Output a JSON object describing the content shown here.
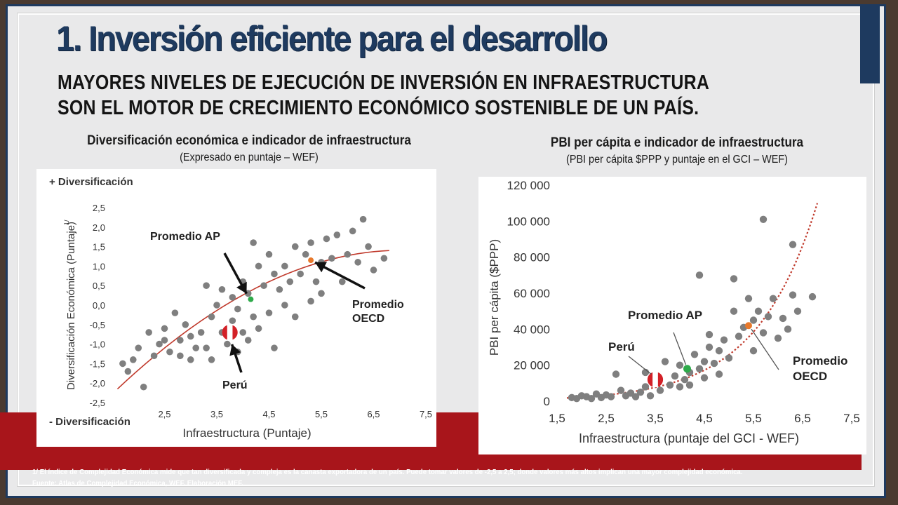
{
  "slide": {
    "title": "1. Inversión eficiente para el desarrollo",
    "subtitle": "MAYORES NIVELES DE EJECUCIÓN DE INVERSIÓN EN INFRAESTRUCTURA SON EL MOTOR DE CRECIMIENTO ECONÓMICO SOSTENIBLE DE UN PAÍS.",
    "footnote": "1/ El índice de Complejidad Económica mide que tan diversificada y compleja es la canasta exportadora de un país. Puede tomar valores de -2,5 a 2,5; donde valores más altos implican una mayor complejidad económica.",
    "source": "Fuente: Atlas de Complejidad Económica, WEF. Elaboración MEF.",
    "colors": {
      "navy": "#1e3a5f",
      "red_band": "#a8151b",
      "dots": "#7f7f7f",
      "trend": "#c0392b",
      "ap": "#2eaa4a",
      "oecd": "#e8792b"
    }
  },
  "chart_data": [
    {
      "type": "scatter",
      "title": "Diversificación económica e indicador de infraestructura",
      "subtitle": "(Expresado en puntaje – WEF)",
      "xlabel": "Infraestructura (Puntaje)",
      "ylabel": "Diversificación Económica (Puntaje)",
      "ylabel_sup": "1/",
      "top_label": "+ Diversificación",
      "bottom_label": "- Diversificación",
      "xlim": [
        1.5,
        7.5
      ],
      "ylim": [
        -2.5,
        2.5
      ],
      "x_ticks": [
        "2,5",
        "3,5",
        "4,5",
        "5,5",
        "6,5",
        "7,5"
      ],
      "x_tick_values": [
        2.5,
        3.5,
        4.5,
        5.5,
        6.5,
        7.5
      ],
      "y_ticks": [
        "2,5",
        "2,0",
        "1,5",
        "1,0",
        "0,5",
        "0,0",
        "-0,5",
        "-1,0",
        "-1,5",
        "-2,0",
        "-2,5"
      ],
      "y_tick_values": [
        2.5,
        2.0,
        1.5,
        1.0,
        0.5,
        0.0,
        -0.5,
        -1.0,
        -1.5,
        -2.0,
        -2.5
      ],
      "grid": false,
      "trend": {
        "type": "quadratic",
        "from": [
          1.6,
          -2.15
        ],
        "via": [
          4.3,
          0.5
        ],
        "to": [
          6.8,
          1.4
        ]
      },
      "points": [
        [
          1.7,
          -1.5
        ],
        [
          1.8,
          -1.7
        ],
        [
          1.9,
          -1.4
        ],
        [
          2.0,
          -1.1
        ],
        [
          2.1,
          -2.1
        ],
        [
          2.2,
          -0.7
        ],
        [
          2.3,
          -1.3
        ],
        [
          2.4,
          -1.0
        ],
        [
          2.5,
          -0.9
        ],
        [
          2.5,
          -0.6
        ],
        [
          2.6,
          -1.2
        ],
        [
          2.7,
          -0.2
        ],
        [
          2.8,
          -0.9
        ],
        [
          2.8,
          -1.3
        ],
        [
          2.9,
          -0.5
        ],
        [
          3.0,
          -1.4
        ],
        [
          3.0,
          -0.8
        ],
        [
          3.1,
          -1.1
        ],
        [
          3.2,
          -0.7
        ],
        [
          3.3,
          -1.1
        ],
        [
          3.3,
          0.5
        ],
        [
          3.4,
          -0.3
        ],
        [
          3.4,
          -1.4
        ],
        [
          3.5,
          0.0
        ],
        [
          3.6,
          -0.7
        ],
        [
          3.6,
          0.4
        ],
        [
          3.7,
          -1.0
        ],
        [
          3.8,
          -0.4
        ],
        [
          3.8,
          0.2
        ],
        [
          3.9,
          -0.1
        ],
        [
          3.9,
          -1.2
        ],
        [
          4.0,
          0.6
        ],
        [
          4.0,
          -0.7
        ],
        [
          4.1,
          0.3
        ],
        [
          4.1,
          -0.9
        ],
        [
          4.2,
          1.6
        ],
        [
          4.2,
          -0.3
        ],
        [
          4.3,
          1.0
        ],
        [
          4.3,
          -0.6
        ],
        [
          4.4,
          0.5
        ],
        [
          4.5,
          -0.2
        ],
        [
          4.5,
          1.3
        ],
        [
          4.6,
          0.8
        ],
        [
          4.6,
          -1.1
        ],
        [
          4.7,
          0.4
        ],
        [
          4.8,
          0.0
        ],
        [
          4.8,
          1.0
        ],
        [
          4.9,
          0.6
        ],
        [
          5.0,
          1.5
        ],
        [
          5.0,
          -0.3
        ],
        [
          5.1,
          0.8
        ],
        [
          5.2,
          1.3
        ],
        [
          5.3,
          0.1
        ],
        [
          5.3,
          1.6
        ],
        [
          5.4,
          0.6
        ],
        [
          5.5,
          1.1
        ],
        [
          5.5,
          0.3
        ],
        [
          5.6,
          1.7
        ],
        [
          5.7,
          1.2
        ],
        [
          5.8,
          1.8
        ],
        [
          5.9,
          0.6
        ],
        [
          6.0,
          1.3
        ],
        [
          6.1,
          1.9
        ],
        [
          6.2,
          1.1
        ],
        [
          6.3,
          2.2
        ],
        [
          6.4,
          1.5
        ],
        [
          6.5,
          0.9
        ],
        [
          6.7,
          1.2
        ]
      ],
      "highlights": [
        {
          "name": "Promedio AP",
          "x": 4.15,
          "y": 0.15
        },
        {
          "name": "Promedio OECD",
          "x": 5.3,
          "y": 1.15
        },
        {
          "name": "Perú",
          "x": 3.75,
          "y": -0.7
        }
      ],
      "annotations": {
        "ap": "Promedio AP",
        "oecd_1": "Promedio",
        "oecd_2": "OECD",
        "peru": "Perú"
      }
    },
    {
      "type": "scatter",
      "title": "PBI per cápita e indicador de infraestructura",
      "subtitle": "(PBI per cápita $PPP y puntaje en el GCI – WEF)",
      "xlabel": "Infraestructura (puntaje del GCI - WEF)",
      "ylabel": "PBI per cápita ($PPP)",
      "xlim": [
        1.5,
        7.5
      ],
      "ylim": [
        0,
        120000
      ],
      "x_ticks": [
        "1,5",
        "2,5",
        "3,5",
        "4,5",
        "5,5",
        "6,5",
        "7,5"
      ],
      "x_tick_values": [
        1.5,
        2.5,
        3.5,
        4.5,
        5.5,
        6.5,
        7.5
      ],
      "y_ticks": [
        "120 000",
        "100 000",
        "80 000",
        "60 000",
        "40 000",
        "20 000",
        "0"
      ],
      "y_tick_values": [
        120000,
        100000,
        80000,
        60000,
        40000,
        20000,
        0
      ],
      "grid": false,
      "trend": {
        "type": "exponential",
        "from": [
          1.7,
          1800
        ],
        "to": [
          6.8,
          110000
        ]
      },
      "points": [
        [
          1.8,
          2000
        ],
        [
          1.9,
          1500
        ],
        [
          2.0,
          3000
        ],
        [
          2.1,
          2500
        ],
        [
          2.2,
          1500
        ],
        [
          2.3,
          4000
        ],
        [
          2.4,
          2000
        ],
        [
          2.5,
          3500
        ],
        [
          2.6,
          2500
        ],
        [
          2.7,
          15000
        ],
        [
          2.8,
          6000
        ],
        [
          2.9,
          3000
        ],
        [
          3.0,
          4500
        ],
        [
          3.1,
          2500
        ],
        [
          3.2,
          5000
        ],
        [
          3.3,
          8000
        ],
        [
          3.3,
          16000
        ],
        [
          3.4,
          3000
        ],
        [
          3.5,
          10000
        ],
        [
          3.6,
          6000
        ],
        [
          3.7,
          22000
        ],
        [
          3.8,
          9000
        ],
        [
          3.9,
          14000
        ],
        [
          4.0,
          8000
        ],
        [
          4.0,
          20000
        ],
        [
          4.1,
          12000
        ],
        [
          4.2,
          16000
        ],
        [
          4.2,
          9000
        ],
        [
          4.3,
          26000
        ],
        [
          4.4,
          18000
        ],
        [
          4.4,
          70000
        ],
        [
          4.5,
          22000
        ],
        [
          4.5,
          13000
        ],
        [
          4.6,
          30000
        ],
        [
          4.6,
          37000
        ],
        [
          4.7,
          21000
        ],
        [
          4.8,
          28000
        ],
        [
          4.8,
          15000
        ],
        [
          4.9,
          34000
        ],
        [
          5.0,
          24000
        ],
        [
          5.1,
          68000
        ],
        [
          5.1,
          50000
        ],
        [
          5.2,
          36000
        ],
        [
          5.3,
          41000
        ],
        [
          5.4,
          57000
        ],
        [
          5.5,
          28000
        ],
        [
          5.5,
          45000
        ],
        [
          5.6,
          50000
        ],
        [
          5.7,
          101000
        ],
        [
          5.7,
          38000
        ],
        [
          5.8,
          47000
        ],
        [
          5.9,
          57000
        ],
        [
          6.0,
          35000
        ],
        [
          6.1,
          46000
        ],
        [
          6.2,
          40000
        ],
        [
          6.3,
          59000
        ],
        [
          6.3,
          87000
        ],
        [
          6.4,
          50000
        ],
        [
          6.7,
          58000
        ]
      ],
      "highlights": [
        {
          "name": "Promedio AP",
          "x": 4.15,
          "y": 18000
        },
        {
          "name": "Promedio OECD",
          "x": 5.4,
          "y": 42000
        },
        {
          "name": "Perú",
          "x": 3.5,
          "y": 12000
        }
      ],
      "annotations": {
        "ap": "Promedio AP",
        "oecd_1": "Promedio",
        "oecd_2": "OECD",
        "peru": "Perú"
      }
    }
  ]
}
